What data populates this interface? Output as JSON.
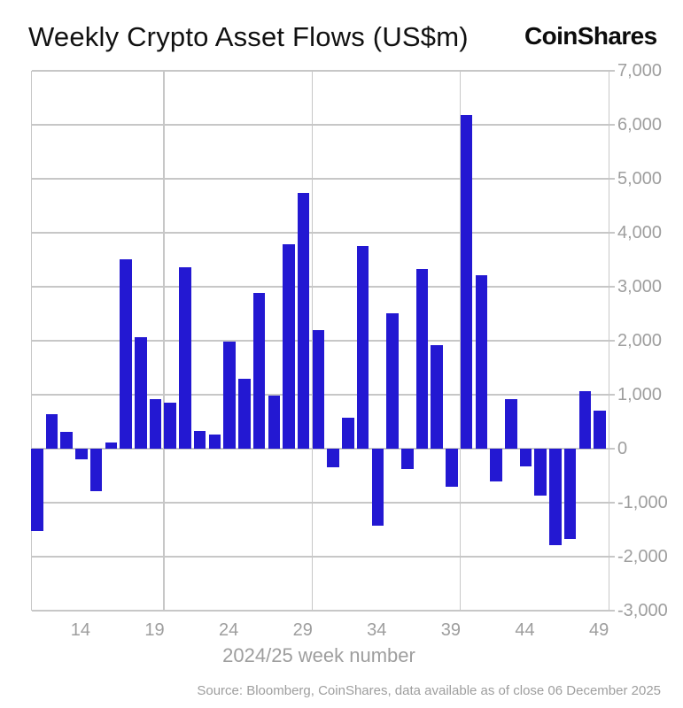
{
  "header": {
    "title": "Weekly Crypto Asset Flows (US$m)",
    "logo": "CoinShares"
  },
  "chart_data": {
    "type": "bar",
    "title": "Weekly Crypto Asset Flows (US$m)",
    "xlabel": "2024/25 week number",
    "ylabel": "",
    "bar_color": "#2318d2",
    "grid_color": "#c7c7c7",
    "label_color": "#9e9e9e",
    "ylim": [
      -3000,
      7000
    ],
    "grid": true,
    "legend_position": "none",
    "weeks": [
      11,
      12,
      13,
      14,
      15,
      16,
      17,
      18,
      19,
      20,
      21,
      22,
      23,
      24,
      25,
      26,
      27,
      28,
      29,
      30,
      31,
      32,
      33,
      34,
      35,
      36,
      37,
      38,
      39,
      40,
      41,
      42,
      43,
      44,
      45,
      46,
      47,
      48,
      49
    ],
    "values": [
      -1520,
      640,
      310,
      -200,
      -780,
      110,
      3510,
      2070,
      920,
      850,
      3360,
      320,
      260,
      1980,
      1290,
      2890,
      980,
      3780,
      4740,
      2190,
      -350,
      570,
      3760,
      -1420,
      2510,
      -370,
      3330,
      1910,
      -710,
      6180,
      3210,
      -610,
      920,
      -330,
      -870,
      -1780,
      -1680,
      1070,
      710
    ],
    "x_ticks": [
      14,
      19,
      24,
      29,
      34,
      39,
      44,
      49
    ],
    "y_tick_values": [
      7000,
      6000,
      5000,
      4000,
      3000,
      2000,
      1000,
      0,
      -1000,
      -2000,
      -3000
    ],
    "y_tick_labels": [
      "7,000",
      "6,000",
      "5,000",
      "4,000",
      "3,000",
      "2,000",
      "1,000",
      "0",
      "-1,000",
      "-2,000",
      "-3,000"
    ],
    "grid_v_after_weeks": [
      19,
      29,
      39
    ]
  },
  "footer": {
    "source": "Source: Bloomberg, CoinShares, data available as of close 06 December 2025"
  }
}
